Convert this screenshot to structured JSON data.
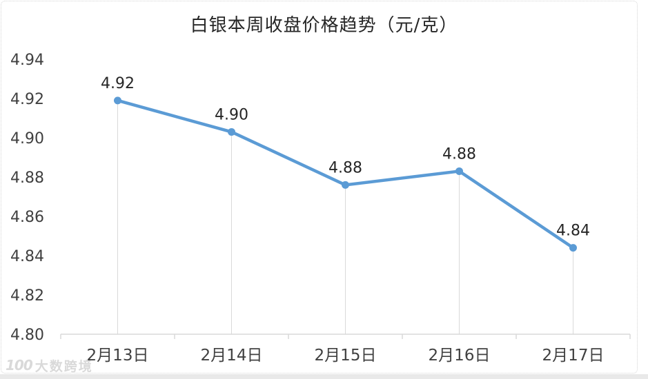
{
  "watermark": {
    "logo": "100",
    "text": "大数跨境"
  },
  "chart_data": {
    "type": "line",
    "title": "白银本周收盘价格趋势（元/克）",
    "categories": [
      "2月13日",
      "2月14日",
      "2月15日",
      "2月16日",
      "2月17日"
    ],
    "values": [
      4.919,
      4.903,
      4.876,
      4.883,
      4.844
    ],
    "data_labels": [
      "4.92",
      "4.90",
      "4.88",
      "4.88",
      "4.84"
    ],
    "xlabel": "",
    "ylabel": "",
    "ylim": [
      4.8,
      4.94
    ],
    "ytick_step": 0.02,
    "ytick_labels": [
      "4.80",
      "4.82",
      "4.84",
      "4.86",
      "4.88",
      "4.90",
      "4.92",
      "4.94"
    ],
    "grid": false,
    "legend": "none",
    "markers": true,
    "drop_lines": true,
    "colors": {
      "line": "#5B9BD5",
      "marker": "#5B9BD5",
      "drop_line": "#D9D9D9",
      "axis": "#D9D9D9",
      "axis_tick_label": "#404040",
      "data_label": "#262626",
      "title": "#262626"
    }
  }
}
